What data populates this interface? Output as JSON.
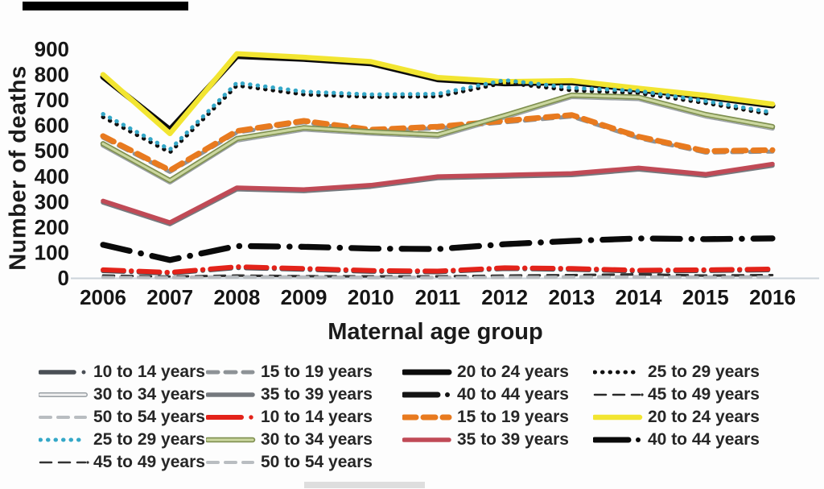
{
  "page": {
    "background": "#fdfdfd"
  },
  "decor": {
    "top_bar_color": "#000000",
    "bottom_smudge_color": "#dedede",
    "axis_line_color": "#ccd4da"
  },
  "chart_data": {
    "type": "line",
    "title": "",
    "xlabel": "Maternal age group",
    "ylabel": "Number of deaths",
    "x_years": [
      "2006",
      "2007",
      "2008",
      "2009",
      "2010",
      "2011",
      "2012",
      "2013",
      "2014",
      "2015",
      "2016"
    ],
    "yticks": [
      0,
      100,
      200,
      300,
      400,
      500,
      600,
      700,
      800,
      900
    ],
    "ylim": [
      0,
      900
    ],
    "grid": false,
    "legend_position": "bottom",
    "series": [
      {
        "name": "10 to 14 years (set 1)",
        "color": "#4a4f55",
        "width": 5.5,
        "dash": "26 9 0.5 9",
        "dot": true,
        "values": [
          28,
          18,
          40,
          33,
          25,
          23,
          36,
          33,
          26,
          28,
          31
        ]
      },
      {
        "name": "15 to 19 years (set 1)",
        "color": "#8d9296",
        "width": 5,
        "dash": "13 9",
        "values": [
          552,
          417,
          572,
          612,
          577,
          589,
          612,
          635,
          550,
          493,
          497
        ]
      },
      {
        "name": "30 to 34 years (set 1)",
        "color": "#9aa0a5",
        "width": 6,
        "fill": "#f1f1f1",
        "fill_width": 3,
        "values": [
          522,
          377,
          542,
          585,
          569,
          557,
          633,
          713,
          705,
          637,
          589
        ]
      },
      {
        "name": "35 to 39 years (set 1)",
        "color": "#75797e",
        "width": 5.5,
        "values": [
          297,
          212,
          349,
          342,
          359,
          393,
          399,
          405,
          427,
          402,
          442
        ]
      },
      {
        "name": "45 to 49 years (set 1)",
        "color": "#2a2a2a",
        "width": 2.5,
        "dash": "14 9",
        "enddot": true,
        "values": [
          10,
          6,
          10,
          8,
          7,
          7,
          10,
          12,
          15,
          10,
          12
        ]
      },
      {
        "name": "50 to 54 years (set 1)",
        "color": "#b9bdc1",
        "width": 4,
        "dash": "13 9",
        "values": [
          4,
          3,
          5,
          4,
          3,
          3,
          4,
          5,
          5,
          4,
          5
        ]
      },
      {
        "name": "40 to 44 years (set 1)",
        "color": "#141414",
        "width": 7,
        "dash": "34 14 0.5 14",
        "dot": true,
        "values": [
          130,
          70,
          125,
          122,
          115,
          113,
          132,
          145,
          155,
          152,
          155
        ]
      },
      {
        "name": "40 to 44 years (set 2)",
        "color": "#0a0a0a",
        "width": 7,
        "dash": "34 14 0.5 14",
        "dot": true,
        "values": [
          131,
          71,
          126,
          123,
          116,
          114,
          133,
          146,
          156,
          153,
          156
        ]
      },
      {
        "name": "10 to 14 years (set 2)",
        "color": "#e3231a",
        "width": 6,
        "dash": "26 9 0.5 9",
        "dot": true,
        "values": [
          32,
          22,
          44,
          37,
          29,
          27,
          40,
          37,
          30,
          32,
          35
        ]
      },
      {
        "name": "15 to 19 years (set 2)",
        "color": "#e87a1f",
        "width": 7,
        "dash": "15 9",
        "values": [
          558,
          423,
          578,
          618,
          583,
          595,
          618,
          641,
          556,
          499,
          503
        ]
      },
      {
        "name": "45 to 49 years (set 2)",
        "color": "#333333",
        "width": 2.5,
        "dash": "14 9",
        "enddot": true,
        "values": [
          8,
          5,
          8,
          6,
          5,
          5,
          8,
          10,
          13,
          8,
          10
        ]
      },
      {
        "name": "50 to 54 years (set 2)",
        "color": "#b9bdc1",
        "width": 4,
        "dash": "13 9",
        "values": [
          2,
          1,
          3,
          2,
          1,
          1,
          2,
          3,
          3,
          2,
          3
        ]
      },
      {
        "name": "20 to 24 years (set 1)",
        "color": "#0b0b0b",
        "width": 7,
        "values": [
          791,
          583,
          872,
          861,
          844,
          781,
          765,
          769,
          740,
          712,
          678
        ]
      },
      {
        "name": "20 to 24 years (set 2)",
        "color": "#f2e531",
        "width": 6.5,
        "values": [
          800,
          568,
          882,
          868,
          851,
          788,
          772,
          776,
          746,
          718,
          684
        ]
      },
      {
        "name": "25 to 29 years (set 1)",
        "color": "#111111",
        "width": 5,
        "dash": "0.5 9",
        "dot": true,
        "values": [
          633,
          494,
          757,
          722,
          712,
          714,
          768,
          738,
          727,
          688,
          643
        ]
      },
      {
        "name": "25 to 29 years (set 2)",
        "color": "#35a8c8",
        "width": 5,
        "dash": "0.5 9",
        "dot": true,
        "values": [
          645,
          505,
          768,
          733,
          722,
          724,
          778,
          748,
          736,
          696,
          651
        ]
      },
      {
        "name": "30 to 34 years (set 2)",
        "color": "#7e8f4f",
        "width": 6.5,
        "fill": "#cbd79f",
        "fill_width": 3.2,
        "values": [
          528,
          383,
          548,
          591,
          575,
          563,
          639,
          719,
          711,
          643,
          595
        ]
      },
      {
        "name": "35 to 39 years (set 2)",
        "color": "#c04a56",
        "width": 5.5,
        "values": [
          303,
          218,
          355,
          348,
          365,
          399,
          405,
          411,
          433,
          408,
          448
        ]
      }
    ],
    "legend_items": [
      {
        "label": "10 to 14 years",
        "series": 0
      },
      {
        "label": "15 to 19 years",
        "series": 1
      },
      {
        "label": "20 to 24 years",
        "series": 12
      },
      {
        "label": "25 to 29 years",
        "series": 14
      },
      {
        "label": "30 to 34 years",
        "series": 2
      },
      {
        "label": "35 to 39 years",
        "series": 3
      },
      {
        "label": "40 to 44 years",
        "series": 6
      },
      {
        "label": "45 to 49 years",
        "series": 4
      },
      {
        "label": "50 to 54 years",
        "series": 5
      },
      {
        "label": "10 to 14 years",
        "series": 8
      },
      {
        "label": "15 to 19 years",
        "series": 9
      },
      {
        "label": "20 to 24 years",
        "series": 13
      },
      {
        "label": "25 to 29 years",
        "series": 15
      },
      {
        "label": "30 to 34 years",
        "series": 16
      },
      {
        "label": "35 to 39 years",
        "series": 17
      },
      {
        "label": "40 to 44 years",
        "series": 7
      },
      {
        "label": "45 to 49 years",
        "series": 10
      },
      {
        "label": "50 to 54 years",
        "series": 11
      }
    ]
  }
}
